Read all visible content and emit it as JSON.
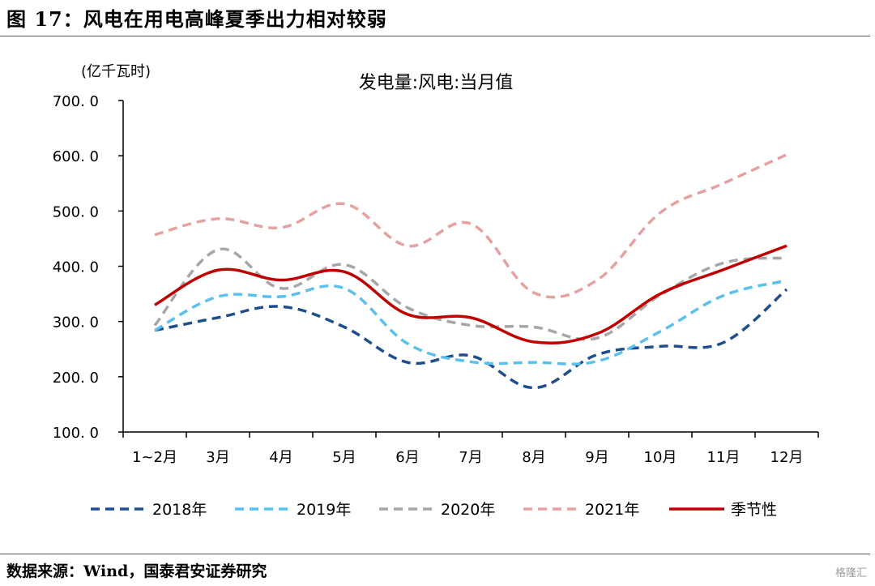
{
  "figure": {
    "title": "图 17：风电在用电高峰夏季出力相对较弱",
    "source": "数据来源：Wind，国泰君安证券研究",
    "watermark": "格隆汇"
  },
  "chart_data": {
    "type": "line",
    "title": "发电量:风电:当月值",
    "ylabel": "(亿千瓦时)",
    "xlabel": "",
    "ylim": [
      100,
      700
    ],
    "yticks": [
      "100. 0",
      "200. 0",
      "300. 0",
      "400. 0",
      "500. 0",
      "600. 0",
      "700. 0"
    ],
    "categories": [
      "1~2月",
      "3月",
      "4月",
      "5月",
      "6月",
      "7月",
      "8月",
      "9月",
      "10月",
      "11月",
      "12月"
    ],
    "grid": false,
    "legend_position": "bottom",
    "series": [
      {
        "name": "2018年",
        "color": "#1f4e8c",
        "dash": "dashed",
        "values": [
          284,
          307,
          327,
          290,
          226,
          238,
          180,
          240,
          255,
          262,
          358
        ]
      },
      {
        "name": "2019年",
        "color": "#5bc0eb",
        "dash": "dashed",
        "values": [
          284,
          345,
          345,
          360,
          260,
          227,
          226,
          228,
          282,
          347,
          374
        ]
      },
      {
        "name": "2020年",
        "color": "#a6a6a6",
        "dash": "dashed",
        "values": [
          293,
          430,
          360,
          403,
          325,
          293,
          290,
          270,
          348,
          406,
          415
        ]
      },
      {
        "name": "2021年",
        "color": "#e6a1a1",
        "dash": "dashed",
        "values": [
          457,
          486,
          470,
          513,
          437,
          477,
          352,
          375,
          497,
          550,
          602
        ]
      },
      {
        "name": "季节性",
        "color": "#c00000",
        "dash": "solid",
        "values": [
          330,
          393,
          375,
          390,
          313,
          307,
          263,
          278,
          350,
          394,
          437
        ]
      }
    ]
  }
}
